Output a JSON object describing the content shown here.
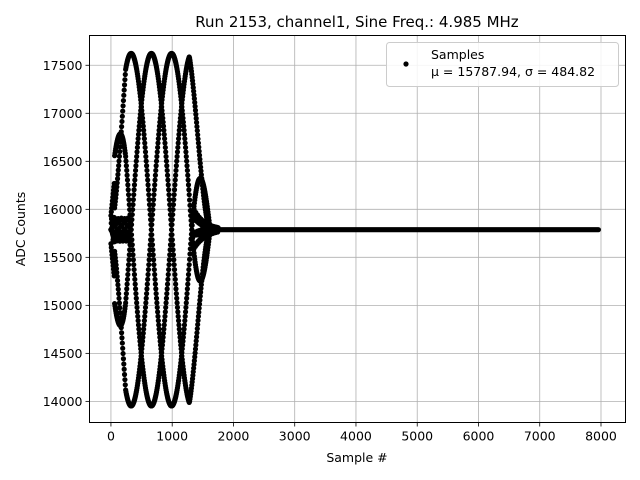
{
  "chart_data": {
    "type": "scatter",
    "title": "Run 2153, channel1, Sine Freq.: 4.985 MHz",
    "xlabel": "Sample #",
    "ylabel": "ADC Counts",
    "xlim": [
      -350,
      8400
    ],
    "ylim": [
      13780,
      17810
    ],
    "xticks": [
      0,
      1000,
      2000,
      3000,
      4000,
      5000,
      6000,
      7000,
      8000
    ],
    "yticks": [
      14000,
      14500,
      15000,
      15500,
      16000,
      16500,
      17000,
      17500
    ],
    "xtick_labels": [
      "0",
      "1000",
      "2000",
      "3000",
      "4000",
      "5000",
      "6000",
      "7000",
      "8000"
    ],
    "ytick_labels": [
      "14000",
      "14500",
      "15000",
      "15500",
      "16000",
      "16500",
      "17000",
      "17500"
    ],
    "grid": true,
    "legend_position": "top-right",
    "series": [
      {
        "name": "Samples",
        "stats_label": "μ = 15787.94, σ = 484.82",
        "color": "#000000",
        "marker": "circle",
        "baseline": 15787.94,
        "min": 13950,
        "max": 17620,
        "signal_start": 0,
        "signal_end": 1750,
        "total_samples": 8000
      }
    ]
  }
}
